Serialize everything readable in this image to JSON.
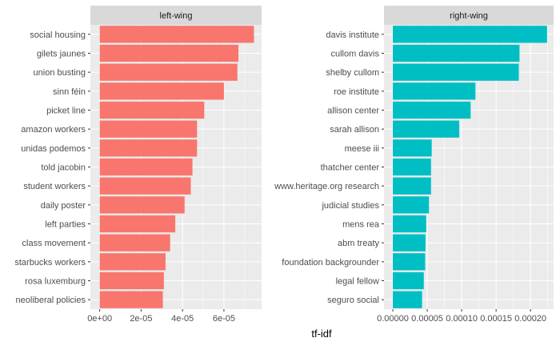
{
  "chart_data": {
    "type": "bar",
    "orientation": "horizontal",
    "xlabel": "tf-idf",
    "grid": true,
    "colors": {
      "panel_bg": "#EBEBEB",
      "strip_bg": "#D9D9D9",
      "grid": "#FFFFFF"
    },
    "panels": [
      {
        "title": "left-wing",
        "color": "#F8766D",
        "categories": [
          "social housing",
          "gilets jaunes",
          "union busting",
          "sinn féin",
          "picket line",
          "amazon workers",
          "unidas podemos",
          "told jacobin",
          "student workers",
          "daily poster",
          "left parties",
          "class movement",
          "starbucks workers",
          "rosa luxemburg",
          "neoliberal policies"
        ],
        "values": [
          7.45e-05,
          6.7e-05,
          6.65e-05,
          6e-05,
          5.05e-05,
          4.7e-05,
          4.7e-05,
          4.48e-05,
          4.4e-05,
          4.1e-05,
          3.65e-05,
          3.4e-05,
          3.18e-05,
          3.1e-05,
          3.05e-05
        ],
        "xlim": [
          -4.5e-06,
          7.82e-05
        ],
        "ticks": [
          0,
          2e-05,
          4e-05,
          6e-05
        ],
        "tick_labels": [
          "0e+00",
          "2e-05",
          "4e-05",
          "6e-05"
        ]
      },
      {
        "title": "right-wing",
        "color": "#00BFC4",
        "categories": [
          "davis institute",
          "cullom davis",
          "shelby cullom",
          "roe institute",
          "allison center",
          "sarah allison",
          "meese iii",
          "thatcher center",
          "www.heritage.org research",
          "judicial studies",
          "mens rea",
          "abm treaty",
          "foundation backgrounder",
          "legal fellow",
          "seguro social"
        ],
        "values": [
          0.000224,
          0.000184,
          0.000183,
          0.00012,
          0.000113,
          9.65e-05,
          5.65e-05,
          5.55e-05,
          5.55e-05,
          5.25e-05,
          4.85e-05,
          4.75e-05,
          4.7e-05,
          4.5e-05,
          4.25e-05
        ],
        "xlim": [
          -1.28e-05,
          0.0002335
        ],
        "ticks": [
          0,
          5e-05,
          0.0001,
          0.00015,
          0.0002
        ],
        "tick_labels": [
          "0.00000",
          "0.00005",
          "0.00010",
          "0.00015",
          "0.00020"
        ]
      }
    ]
  }
}
